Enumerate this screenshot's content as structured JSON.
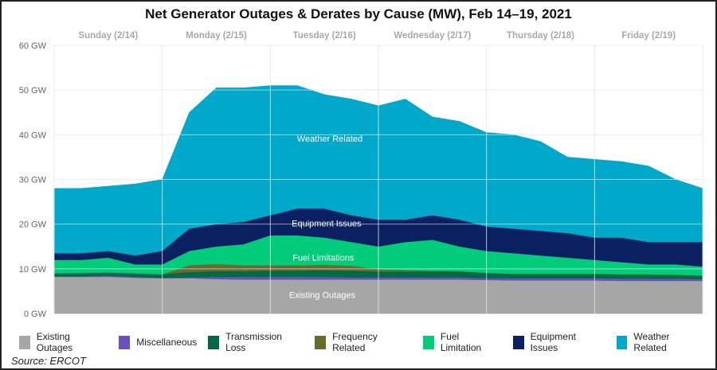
{
  "chart_data": {
    "type": "area",
    "stacked": true,
    "title": "Net Generator Outages & Derates by Cause (MW), Feb 14–19, 2021",
    "xlabel": "",
    "ylabel": "",
    "day_labels": [
      "Sunday (2/14)",
      "Monday (2/15)",
      "Tuesday (2/16)",
      "Wednesday (2/17)",
      "Thursday (2/18)",
      "Friday (2/19)"
    ],
    "y_ticks": [
      "0 GW",
      "10 GW",
      "20 GW",
      "30 GW",
      "40 GW",
      "50 GW",
      "60 GW"
    ],
    "ylim": [
      0,
      60
    ],
    "grid": true,
    "legend_position": "bottom",
    "x_days": [
      0,
      0.25,
      0.5,
      0.75,
      1,
      1.25,
      1.5,
      1.75,
      2,
      2.25,
      2.5,
      2.75,
      3,
      3.25,
      3.5,
      3.75,
      4,
      4.25,
      4.5,
      4.75,
      5,
      5.25,
      5.5,
      5.75,
      6
    ],
    "series": [
      {
        "name": "Existing Outages",
        "color": "#a6a6a6",
        "label": "Existing Outages",
        "values": [
          8.2,
          8.2,
          8.2,
          8.0,
          7.9,
          7.9,
          7.7,
          7.6,
          7.6,
          7.6,
          7.6,
          7.6,
          7.6,
          7.6,
          7.6,
          7.6,
          7.5,
          7.4,
          7.4,
          7.4,
          7.4,
          7.3,
          7.3,
          7.3,
          7.3
        ]
      },
      {
        "name": "Miscellaneous",
        "color": "#6a4fbf",
        "values": [
          0.1,
          0.1,
          0.3,
          0.2,
          0.1,
          0.2,
          0.5,
          0.6,
          0.6,
          0.6,
          0.6,
          0.5,
          0.5,
          0.5,
          0.5,
          0.5,
          0.4,
          0.5,
          0.5,
          0.5,
          0.5,
          0.5,
          0.5,
          0.5,
          0.4
        ]
      },
      {
        "name": "Transmission Loss",
        "color": "#006a45",
        "values": [
          0.7,
          0.8,
          0.7,
          0.8,
          0.8,
          1.2,
          1.3,
          1.3,
          1.4,
          1.4,
          1.5,
          1.5,
          1.3,
          1.3,
          1.3,
          1.3,
          1.2,
          1.0,
          1.0,
          1.0,
          1.0,
          1.0,
          1.0,
          0.9,
          0.8
        ]
      },
      {
        "name": "Frequency Related",
        "color": "#6b6a2e",
        "values": [
          0,
          0,
          0,
          0,
          0,
          1.5,
          1.6,
          1.3,
          1.2,
          1.2,
          1.2,
          1.1,
          0.5,
          0.3,
          0.2,
          0.1,
          0,
          0,
          0,
          0,
          0,
          0,
          0,
          0,
          0
        ]
      },
      {
        "name": "Fuel Limitation",
        "color": "#00cc7a",
        "label": "Fuel Limitations",
        "values": [
          3.0,
          2.9,
          3.3,
          2.0,
          2.2,
          3.2,
          3.9,
          4.7,
          6.7,
          6.7,
          6.1,
          5.3,
          5.1,
          6.3,
          6.9,
          5.5,
          4.9,
          4.6,
          4.1,
          3.6,
          3.1,
          2.7,
          2.2,
          2.3,
          2.0
        ]
      },
      {
        "name": "Equipment Issues",
        "color": "#0a2060",
        "label": "Equipment Issues",
        "values": [
          1.5,
          1.5,
          1.5,
          2,
          3,
          5,
          5,
          5,
          4.5,
          6,
          6.5,
          6,
          6,
          5,
          5.5,
          6,
          5.5,
          5.5,
          5.5,
          5.5,
          5,
          5.5,
          5,
          5,
          5.5
        ]
      },
      {
        "name": "Weather Related",
        "color": "#00a9c9",
        "label": "Weather Related",
        "values": [
          14.5,
          14.5,
          14.5,
          16,
          16,
          26,
          30.5,
          30,
          29,
          27.5,
          25.5,
          26,
          25.5,
          27,
          22,
          22,
          21,
          21,
          20,
          17,
          17.5,
          17,
          17,
          14,
          12
        ]
      }
    ],
    "source": "Source: ERCOT"
  }
}
